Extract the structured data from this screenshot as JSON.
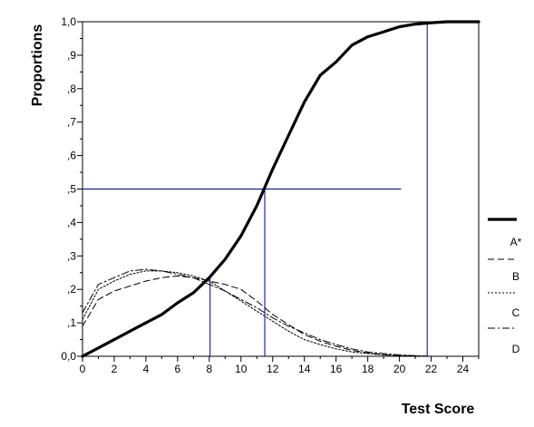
{
  "chart_data": {
    "type": "line",
    "title": "",
    "xlabel": "Test Score",
    "ylabel": "Proportions",
    "xlim": [
      0,
      25
    ],
    "ylim": [
      0,
      1.0
    ],
    "x_ticks": [
      0,
      2,
      4,
      6,
      8,
      10,
      12,
      14,
      16,
      18,
      20,
      22,
      24
    ],
    "y_ticks": [
      0,
      0.1,
      0.2,
      0.3,
      0.4,
      0.5,
      0.6,
      0.7,
      0.8,
      0.9,
      1.0
    ],
    "y_tick_labels": [
      "0,0",
      ",1",
      ",2",
      ",3",
      ",4",
      ",5",
      ",6",
      ",7",
      ",8",
      ",9",
      "1,0"
    ],
    "x_tick_labels": [
      "0",
      "2",
      "4",
      "6",
      "8",
      "10",
      "12",
      "14",
      "16",
      "18",
      "20",
      "22",
      "24"
    ],
    "grid": false,
    "legend_position": "right",
    "series": [
      {
        "name": "A*",
        "style": "solid-thick",
        "color": "#000000",
        "x": [
          0,
          1,
          2,
          3,
          4,
          5,
          6,
          7,
          8,
          9,
          10,
          11,
          12,
          13,
          14,
          15,
          16,
          17,
          18,
          19,
          20,
          21,
          22,
          23,
          24,
          25
        ],
        "y": [
          0.0,
          0.025,
          0.05,
          0.075,
          0.1,
          0.125,
          0.16,
          0.19,
          0.235,
          0.29,
          0.36,
          0.45,
          0.56,
          0.66,
          0.76,
          0.84,
          0.88,
          0.93,
          0.955,
          0.97,
          0.985,
          0.993,
          0.997,
          1.0,
          1.0,
          1.0
        ]
      },
      {
        "name": "B",
        "style": "dash",
        "color": "#000000",
        "x": [
          0,
          1,
          2,
          3,
          4,
          5,
          6,
          7,
          8,
          9,
          10,
          11,
          12,
          13,
          14,
          15,
          16,
          17,
          18,
          19,
          20,
          21,
          22
        ],
        "y": [
          0.09,
          0.17,
          0.195,
          0.21,
          0.225,
          0.235,
          0.24,
          0.235,
          0.225,
          0.215,
          0.2,
          0.165,
          0.125,
          0.095,
          0.065,
          0.045,
          0.03,
          0.018,
          0.01,
          0.005,
          0.003,
          0.001,
          0.0
        ]
      },
      {
        "name": "C",
        "style": "dot",
        "color": "#000000",
        "x": [
          0,
          1,
          2,
          3,
          4,
          5,
          6,
          7,
          8,
          9,
          10,
          11,
          12,
          13,
          14,
          15,
          16,
          17,
          18,
          19,
          20,
          21,
          22
        ],
        "y": [
          0.11,
          0.2,
          0.225,
          0.245,
          0.255,
          0.255,
          0.25,
          0.24,
          0.225,
          0.195,
          0.165,
          0.135,
          0.105,
          0.075,
          0.05,
          0.035,
          0.022,
          0.013,
          0.008,
          0.004,
          0.002,
          0.001,
          0.0
        ]
      },
      {
        "name": "D",
        "style": "dash-dot",
        "color": "#000000",
        "x": [
          0,
          1,
          2,
          3,
          4,
          5,
          6,
          7,
          8,
          9,
          10,
          11,
          12,
          13,
          14,
          15,
          16,
          17,
          18,
          19,
          20,
          21,
          22
        ],
        "y": [
          0.13,
          0.215,
          0.235,
          0.255,
          0.26,
          0.255,
          0.245,
          0.235,
          0.215,
          0.195,
          0.17,
          0.145,
          0.115,
          0.09,
          0.07,
          0.05,
          0.035,
          0.022,
          0.013,
          0.008,
          0.004,
          0.002,
          0.0
        ]
      }
    ],
    "reference_lines": [
      {
        "kind": "horizontal",
        "y": 0.5,
        "x_from": 0,
        "x_to": 20.1,
        "color": "#000080"
      },
      {
        "kind": "vertical",
        "x": 11.5,
        "y_from": 0,
        "y_to": 0.5,
        "color": "#000080"
      },
      {
        "kind": "vertical",
        "x": 8.05,
        "y_from": 0,
        "y_to": 0.235,
        "color": "#000080"
      },
      {
        "kind": "vertical",
        "x": 21.75,
        "y_from": 0,
        "y_to": 0.997,
        "color": "#000080"
      }
    ]
  }
}
